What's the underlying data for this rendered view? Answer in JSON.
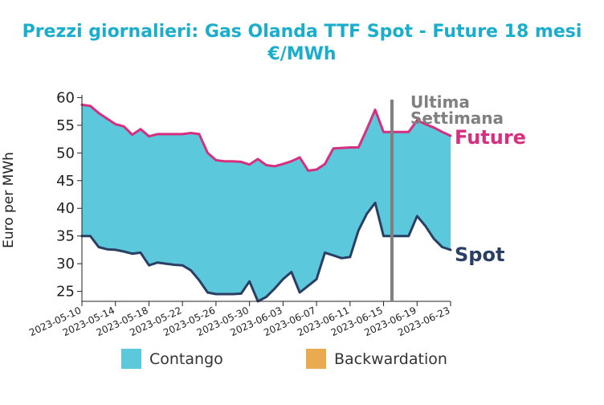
{
  "chart_data": {
    "type": "area",
    "title": "Prezzi giornalieri: Gas Olanda TTF Spot - Future 18 mesi",
    "subtitle": "€/MWh",
    "ylabel": "Euro per MWh",
    "ylim": [
      23.2,
      60.5
    ],
    "yticks": [
      25,
      30,
      35,
      40,
      45,
      50,
      55,
      60
    ],
    "x": [
      "2023-05-10",
      "2023-05-11",
      "2023-05-12",
      "2023-05-13",
      "2023-05-14",
      "2023-05-15",
      "2023-05-16",
      "2023-05-17",
      "2023-05-18",
      "2023-05-19",
      "2023-05-20",
      "2023-05-21",
      "2023-05-22",
      "2023-05-23",
      "2023-05-24",
      "2023-05-25",
      "2023-05-26",
      "2023-05-27",
      "2023-05-28",
      "2023-05-29",
      "2023-05-30",
      "2023-05-31",
      "2023-06-01",
      "2023-06-02",
      "2023-06-03",
      "2023-06-04",
      "2023-06-05",
      "2023-06-06",
      "2023-06-07",
      "2023-06-08",
      "2023-06-09",
      "2023-06-10",
      "2023-06-11",
      "2023-06-12",
      "2023-06-13",
      "2023-06-14",
      "2023-06-15",
      "2023-06-16",
      "2023-06-17",
      "2023-06-18",
      "2023-06-19",
      "2023-06-20",
      "2023-06-21",
      "2023-06-22",
      "2023-06-23"
    ],
    "xticks": [
      "2023-05-10",
      "2023-05-14",
      "2023-05-18",
      "2023-05-22",
      "2023-05-26",
      "2023-05-30",
      "2023-06-03",
      "2023-06-07",
      "2023-06-11",
      "2023-06-15",
      "2023-06-19",
      "2023-06-23"
    ],
    "series": [
      {
        "name": "Future",
        "color": "#d62f7f",
        "values": [
          58.7,
          58.5,
          57.2,
          56.2,
          55.2,
          54.8,
          53.3,
          54.3,
          53.0,
          53.4,
          53.4,
          53.4,
          53.4,
          53.6,
          53.4,
          50.0,
          48.7,
          48.5,
          48.5,
          48.4,
          47.9,
          48.9,
          47.8,
          47.6,
          48.0,
          48.5,
          49.2,
          46.8,
          47.0,
          48.0,
          50.8,
          50.9,
          51.0,
          51.0,
          54.3,
          57.8,
          53.8,
          53.8,
          53.8,
          53.8,
          55.9,
          55.2,
          54.6,
          53.8,
          53.1
        ]
      },
      {
        "name": "Spot",
        "color": "#2a3f63",
        "values": [
          35.0,
          35.0,
          33.0,
          32.6,
          32.5,
          32.2,
          31.8,
          32.0,
          29.7,
          30.2,
          30.0,
          29.8,
          29.7,
          28.8,
          27.0,
          24.8,
          24.5,
          24.5,
          24.5,
          24.6,
          26.8,
          23.2,
          24.0,
          25.5,
          27.2,
          28.5,
          24.8,
          26.0,
          27.2,
          32.0,
          31.5,
          31.0,
          31.2,
          36.0,
          39.0,
          41.0,
          35.0,
          35.0,
          35.0,
          35.0,
          38.6,
          36.8,
          34.5,
          33.0,
          32.5
        ]
      }
    ],
    "fills": [
      {
        "name": "Contango",
        "color": "#5bc8dc"
      },
      {
        "name": "Backwardation",
        "color": "#eaaa50"
      }
    ],
    "vline": {
      "x": "2023-06-16",
      "label": "Ultima Settimana",
      "label_lines": [
        "Ultima",
        "Settimana"
      ],
      "color": "#808080"
    },
    "series_labels": {
      "future": "Future",
      "spot": "Spot"
    },
    "legend_position": "bottom"
  }
}
